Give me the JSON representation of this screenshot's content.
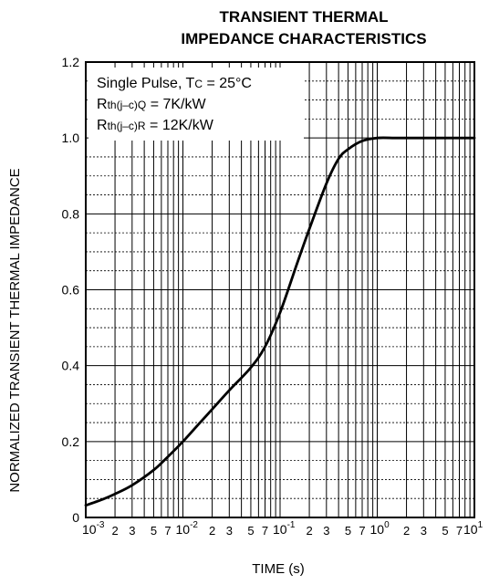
{
  "chart_data": {
    "type": "line",
    "title": "TRANSIENT THERMAL",
    "subtitle": "IMPEDANCE CHARACTERISTICS",
    "xlabel": "TIME (s)",
    "ylabel": "NORMALIZED TRANSIENT THERMAL IMPEDANCE",
    "x_scale": "log",
    "xlim": [
      0.001,
      10
    ],
    "ylim": [
      0,
      1.2
    ],
    "grid": true,
    "y_ticks": [
      "0",
      "0.2",
      "0.4",
      "0.6",
      "0.8",
      "1.0",
      "1.2"
    ],
    "x_decade_ticks": [
      {
        "base": "10",
        "exp": "-3"
      },
      {
        "base": "10",
        "exp": "-2"
      },
      {
        "base": "10",
        "exp": "-1"
      },
      {
        "base": "10",
        "exp": "0"
      },
      {
        "base": "10",
        "exp": "1"
      }
    ],
    "x_minor_tick_labels": [
      "2",
      "3",
      "5",
      "7"
    ],
    "legend": {
      "line1_prefix": "Single Pulse, T",
      "line1_sub": "C",
      "line1_suffix": " = 25°C",
      "line2_prefix": "R",
      "line2_sub": "th(j–c)Q",
      "line2_suffix": " = 7K/kW",
      "line3_prefix": "R",
      "line3_sub": "th(j–c)R",
      "line3_suffix": " = 12K/kW",
      "placement": "top-left"
    },
    "series": [
      {
        "x": [
          0.001,
          0.0015,
          0.002,
          0.003,
          0.005,
          0.007,
          0.01,
          0.015,
          0.02,
          0.03,
          0.05,
          0.07,
          0.1,
          0.15,
          0.2,
          0.3,
          0.4,
          0.5,
          0.7,
          1.0,
          1.5,
          2,
          3,
          5,
          7,
          10
        ],
        "y": [
          0.032,
          0.048,
          0.062,
          0.085,
          0.125,
          0.16,
          0.2,
          0.25,
          0.285,
          0.335,
          0.395,
          0.45,
          0.54,
          0.67,
          0.76,
          0.88,
          0.945,
          0.97,
          0.992,
          1.0,
          1.0,
          1.0,
          1.0,
          1.0,
          1.0,
          1.0
        ]
      }
    ]
  }
}
